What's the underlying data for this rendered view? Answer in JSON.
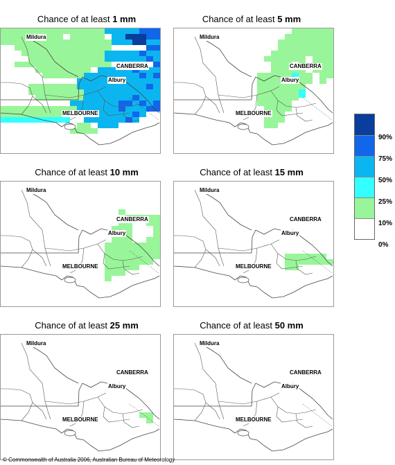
{
  "panels": [
    {
      "title_prefix": "Chance of at least ",
      "amount": "1 mm",
      "level": 1
    },
    {
      "title_prefix": "Chance of at least ",
      "amount": "5 mm",
      "level": 2
    },
    {
      "title_prefix": "Chance of at least ",
      "amount": "10 mm",
      "level": 3
    },
    {
      "title_prefix": "Chance of at least ",
      "amount": "15 mm",
      "level": 4
    },
    {
      "title_prefix": "Chance of at least ",
      "amount": "25 mm",
      "level": 5
    },
    {
      "title_prefix": "Chance of at least ",
      "amount": "50 mm",
      "level": 6
    }
  ],
  "cities": {
    "mildura": "Mildura",
    "canberra": "CANBERRA",
    "albury": "Albury",
    "melbourne": "MELBOURNE"
  },
  "legend": {
    "labels": [
      "90%",
      "75%",
      "50%",
      "25%",
      "10%",
      "0%"
    ],
    "colors": [
      "#0a3d9c",
      "#1266ea",
      "#0bb6f0",
      "#33ffff",
      "#99f599",
      "#ffffff"
    ]
  },
  "footer": "© Commonwealth of Australia 2006, Australian Bureau of Meteorology"
}
